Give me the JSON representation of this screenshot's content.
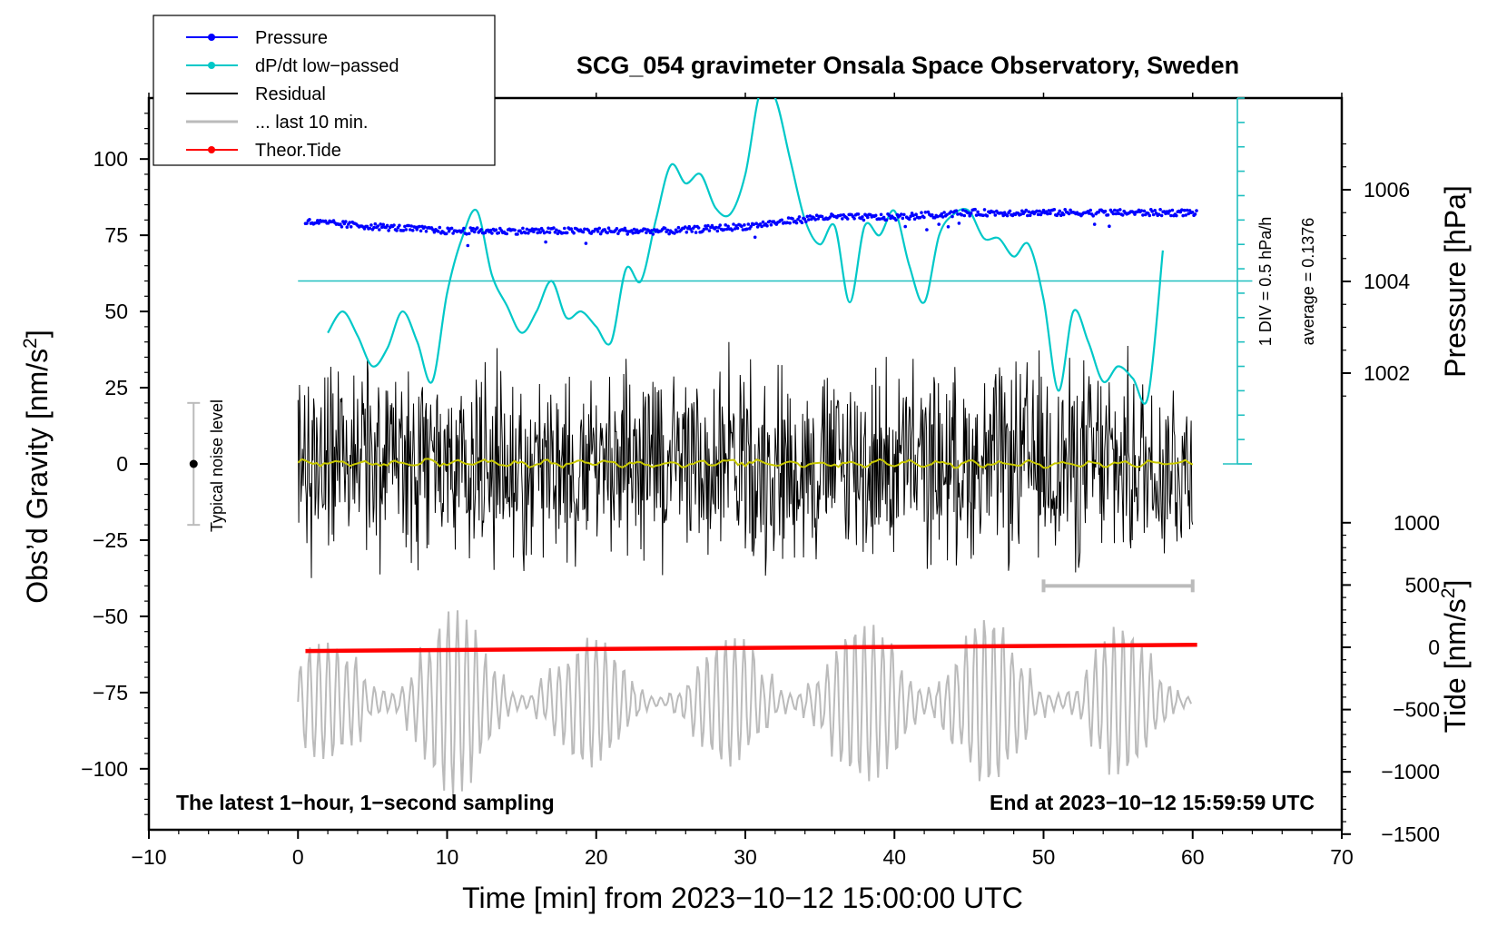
{
  "chart_data": {
    "type": "line",
    "title": "SCG_054 gravimeter Onsala Space Observatory, Sweden",
    "xlabel": "Time [min] from 2023−10−12 15:00:00 UTC",
    "ylabel_left_main": "Obs’d Gravity [nm/s",
    "ylabel_left_sup": "2",
    "ylabel_left_end": "]",
    "ylabel_right_pressure": "Pressure [hPa]",
    "ylabel_right_tide_main": "Tide [nm/s",
    "ylabel_right_tide_sup": "2",
    "ylabel_right_tide_end": "]",
    "xlim": [
      -10,
      70
    ],
    "ylim_gravity": [
      -120,
      120
    ],
    "ylim_pressure_display": [
      1000,
      1008
    ],
    "ylim_tide_display": [
      -1500,
      1000
    ],
    "x_ticks": [
      {
        "v": -10,
        "label": "−10"
      },
      {
        "v": 0,
        "label": "0"
      },
      {
        "v": 10,
        "label": "10"
      },
      {
        "v": 20,
        "label": "20"
      },
      {
        "v": 30,
        "label": "30"
      },
      {
        "v": 40,
        "label": "40"
      },
      {
        "v": 50,
        "label": "50"
      },
      {
        "v": 60,
        "label": "60"
      },
      {
        "v": 70,
        "label": "70"
      }
    ],
    "gravity_ticks": [
      {
        "v": 100,
        "label": "100"
      },
      {
        "v": 75,
        "label": "75"
      },
      {
        "v": 50,
        "label": "50"
      },
      {
        "v": 25,
        "label": "25"
      },
      {
        "v": 0,
        "label": "0"
      },
      {
        "v": -25,
        "label": "−25"
      },
      {
        "v": -50,
        "label": "−50"
      },
      {
        "v": -75,
        "label": "−75"
      },
      {
        "v": -100,
        "label": "−100"
      }
    ],
    "pressure_ticks": [
      {
        "v": 1006,
        "label": "1006"
      },
      {
        "v": 1004,
        "label": "1004"
      },
      {
        "v": 1002,
        "label": "1002"
      }
    ],
    "tide_ticks": [
      {
        "v": 1000,
        "label": "1000"
      },
      {
        "v": 500,
        "label": "500"
      },
      {
        "v": 0,
        "label": "0"
      },
      {
        "v": -500,
        "label": "−500"
      },
      {
        "v": -1000,
        "label": "−1000"
      },
      {
        "v": -1500,
        "label": "−1500"
      }
    ],
    "legend": [
      {
        "label": "Pressure",
        "color": "#0000ff",
        "marker": true
      },
      {
        "label": "dP/dt low−passed",
        "color": "#00c8c8",
        "marker": true
      },
      {
        "label": "Residual",
        "color": "#000000",
        "marker": false
      },
      {
        "label": "... last 10 min.",
        "color": "#bbbbbb",
        "marker": false
      },
      {
        "label": "Theor.Tide",
        "color": "#ff0000",
        "marker": true
      }
    ],
    "annotations": {
      "left_footer": "The latest 1−hour, 1−second sampling",
      "right_footer": "End at 2023−10−12 15:59:59 UTC",
      "noise_label": "Typical noise level",
      "div_label": "1 DIV = 0.5 hPa/h",
      "average_label": "average = 0.1376"
    },
    "noise_bar": {
      "x": -7,
      "low": -20,
      "high": 20
    },
    "ten_min_bar": {
      "x_start": 50,
      "x_end": 60,
      "y": -40
    },
    "dpdt_reference_level": 60,
    "dpdt_scale_bar": {
      "x": 63,
      "y_low": 0,
      "y_high": 120,
      "divisions": 15
    },
    "series": [
      {
        "name": "Pressure",
        "color": "#0000ff",
        "unit": "hPa",
        "x": [
          0.5,
          5,
          10,
          15,
          20,
          25,
          30,
          35,
          40,
          45,
          50,
          55,
          60.3
        ],
        "y": [
          1005.3,
          1005.2,
          1005.1,
          1005.1,
          1005.1,
          1005.1,
          1005.2,
          1005.4,
          1005.4,
          1005.5,
          1005.5,
          1005.5,
          1005.5
        ]
      },
      {
        "name": "dP/dt low-passed",
        "color": "#00c8c8",
        "unit": "hPa/h (plotted on gravity scale, 60 = 0)",
        "x": [
          2,
          3,
          4,
          5,
          6,
          7,
          8,
          9,
          10,
          11,
          12,
          13,
          14,
          15,
          16,
          17,
          18,
          19,
          20,
          21,
          22,
          23,
          24,
          25,
          26,
          27,
          28,
          29,
          30,
          31,
          32,
          33,
          34,
          35,
          36,
          37,
          38,
          39,
          40,
          41,
          42,
          43,
          44,
          45,
          46,
          47,
          48,
          49,
          50,
          51,
          52,
          53,
          54,
          55,
          56,
          57,
          58
        ],
        "y": [
          43,
          50,
          42,
          32,
          38,
          50,
          40,
          27,
          56,
          74,
          83,
          62,
          52,
          43,
          50,
          60,
          48,
          50,
          45,
          40,
          64,
          60,
          80,
          98,
          92,
          95,
          84,
          82,
          95,
          122,
          120,
          100,
          80,
          72,
          78,
          53,
          78,
          75,
          83,
          65,
          53,
          75,
          82,
          83,
          74,
          74,
          68,
          72,
          54,
          24,
          50,
          40,
          27,
          32,
          28,
          22,
          70
        ]
      },
      {
        "name": "Residual",
        "color": "#000000",
        "unit": "nm/s2",
        "x": [
          0,
          5,
          10,
          15,
          20,
          25,
          30,
          35,
          40,
          45,
          50,
          55,
          60
        ],
        "y": [
          0,
          0,
          0,
          0,
          0,
          0,
          0,
          0,
          0,
          0,
          0,
          0,
          0
        ],
        "envelope": [
          40,
          38,
          40,
          42,
          40,
          38,
          42,
          38,
          40,
          36,
          42,
          40,
          40
        ]
      },
      {
        "name": "... last 10 min.",
        "color": "#bbbbbb",
        "unit": "nm/s2 (offset -78)",
        "x": [
          0,
          5,
          10,
          15,
          20,
          25,
          30,
          35,
          40,
          45,
          50,
          55,
          60
        ],
        "y": [
          -78,
          -78,
          -78,
          -78,
          -78,
          -78,
          -78,
          -78,
          -78,
          -78,
          -78,
          -78,
          -78
        ],
        "envelope": [
          18,
          22,
          32,
          20,
          22,
          12,
          24,
          20,
          30,
          32,
          18,
          26,
          10
        ]
      },
      {
        "name": "Theor.Tide",
        "color": "#ff0000",
        "unit": "nm/s2",
        "x": [
          0.5,
          60.3
        ],
        "y": [
          -30,
          20
        ]
      },
      {
        "name": "Residual smoothed",
        "color": "#c8c800",
        "unit": "nm/s2",
        "x": [
          0,
          5,
          10,
          15,
          20,
          25,
          30,
          35,
          40,
          45,
          50,
          55,
          60
        ],
        "y": [
          0.5,
          0,
          0.5,
          0,
          0.3,
          0,
          0.5,
          0,
          0.3,
          0,
          0,
          0,
          0.5
        ]
      }
    ]
  }
}
